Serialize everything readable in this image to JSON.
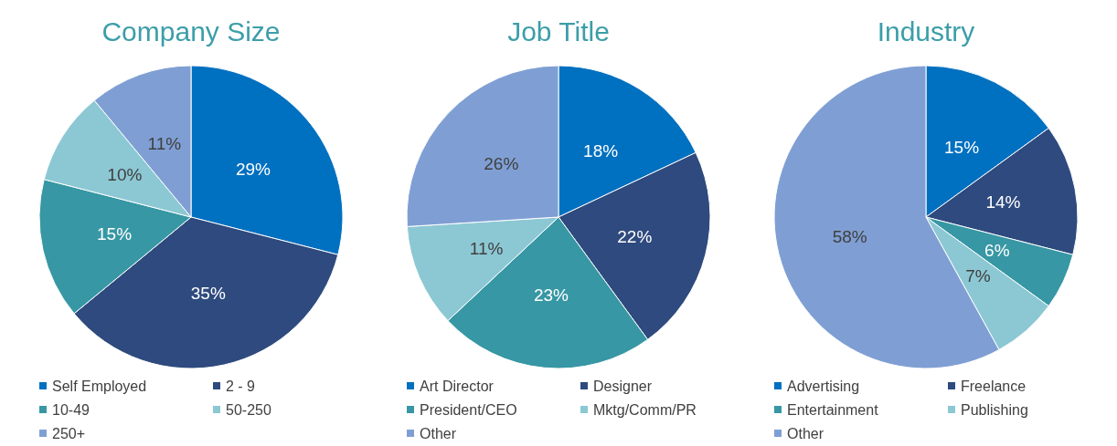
{
  "chart_data": [
    {
      "type": "pie",
      "title": "Company Size",
      "categories": [
        "Self Employed",
        "2 - 9",
        "10-49",
        "50-250",
        "250+"
      ],
      "values": [
        29,
        35,
        15,
        10,
        11
      ],
      "value_labels": [
        "29%",
        "35%",
        "15%",
        "10%",
        "11%"
      ],
      "colors": [
        "#0070c0",
        "#2e4a7e",
        "#3797a4",
        "#8cc8d4",
        "#7f9fd4"
      ],
      "legend": "bottom"
    },
    {
      "type": "pie",
      "title": "Job Title",
      "categories": [
        "Art Director",
        "Designer",
        "President/CEO",
        "Mktg/Comm/PR",
        "Other"
      ],
      "values": [
        18,
        22,
        23,
        11,
        26
      ],
      "value_labels": [
        "18%",
        "22%",
        "23%",
        "11%",
        "26%"
      ],
      "colors": [
        "#0070c0",
        "#2e4a7e",
        "#3797a4",
        "#8cc8d4",
        "#7f9fd4"
      ],
      "legend": "bottom"
    },
    {
      "type": "pie",
      "title": "Industry",
      "categories": [
        "Advertising",
        "Freelance",
        "Entertainment",
        "Publishing",
        "Other"
      ],
      "values": [
        15,
        14,
        6,
        7,
        58
      ],
      "value_labels": [
        "15%",
        "14%",
        "6%",
        "7%",
        "58%"
      ],
      "colors": [
        "#0070c0",
        "#2e4a7e",
        "#3797a4",
        "#8cc8d4",
        "#7f9fd4"
      ],
      "legend": "bottom"
    }
  ]
}
